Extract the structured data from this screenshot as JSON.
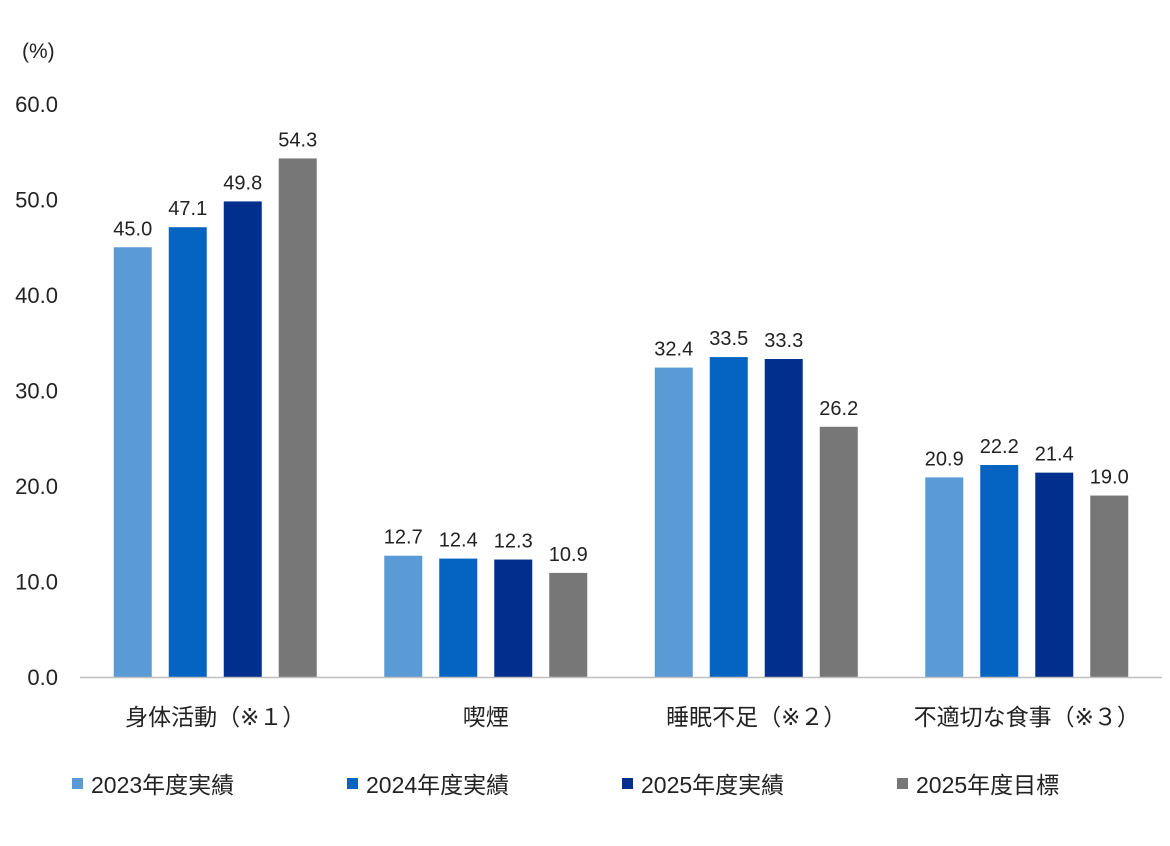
{
  "chart_data": {
    "type": "bar",
    "ylabel": "(%)",
    "ylim": [
      0,
      60
    ],
    "yticks": [
      "0.0",
      "10.0",
      "20.0",
      "30.0",
      "40.0",
      "50.0",
      "60.0"
    ],
    "categories": [
      "身体活動（※１）",
      "喫煙",
      "睡眠不足（※２）",
      "不適切な食事（※３）"
    ],
    "series": [
      {
        "name": "2023年度実績",
        "color": "#5B9BD5",
        "values": [
          45.0,
          12.7,
          32.4,
          20.9
        ],
        "labels": [
          "45.0",
          "12.7",
          "32.4",
          "20.9"
        ]
      },
      {
        "name": "2024年度実績",
        "color": "#0563C1",
        "values": [
          47.1,
          12.4,
          33.5,
          22.2
        ],
        "labels": [
          "47.1",
          "12.4",
          "33.5",
          "22.2"
        ]
      },
      {
        "name": "2025年度実績",
        "color": "#002F8E",
        "values": [
          49.8,
          12.3,
          33.3,
          21.4
        ],
        "labels": [
          "49.8",
          "12.3",
          "33.3",
          "21.4"
        ]
      },
      {
        "name": "2025年度目標",
        "color": "#777777",
        "values": [
          54.3,
          10.9,
          26.2,
          19.0
        ],
        "labels": [
          "54.3",
          "10.9",
          "26.2",
          "19.0"
        ]
      }
    ],
    "grid": false,
    "legend": "bottom"
  }
}
